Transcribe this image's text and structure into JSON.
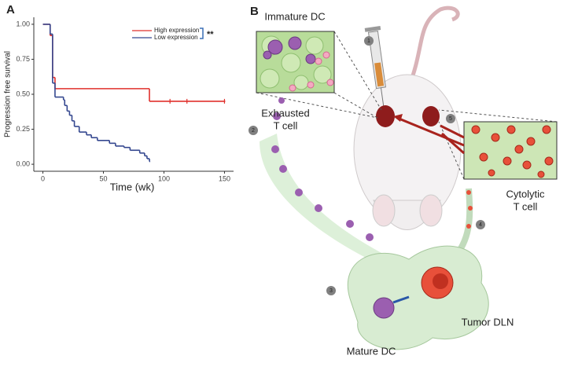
{
  "chart_data": {
    "type": "step",
    "panel_label": "A",
    "xlabel": "Time (wk)",
    "ylabel": "Progression free survival",
    "annotation": "**",
    "xlim": [
      -7.5,
      157.5
    ],
    "ylim": [
      -0.05,
      1.05
    ],
    "xticks": [
      0,
      50,
      100,
      150
    ],
    "yticks": [
      {
        "value": 0,
        "label": "0.00"
      },
      {
        "value": 0.25,
        "label": "0.25"
      },
      {
        "value": 0.5,
        "label": "0.50"
      },
      {
        "value": 0.75,
        "label": "0.75"
      },
      {
        "value": 1,
        "label": "1.00"
      }
    ],
    "legend": "upper right",
    "series": [
      {
        "name": "High expression",
        "color": "#e0302c",
        "x": [
          0,
          6,
          8,
          10,
          88,
          150
        ],
        "values": [
          1.0,
          0.92,
          0.62,
          0.54,
          0.45,
          0.45
        ],
        "censored": [
          105,
          119,
          150
        ]
      },
      {
        "name": "Low expression",
        "color": "#34478f",
        "x": [
          0,
          6,
          8,
          10,
          17,
          18,
          20,
          22,
          24,
          26,
          30,
          36,
          40,
          45,
          55,
          60,
          67,
          72,
          80,
          84,
          86,
          88
        ],
        "values": [
          1.0,
          0.93,
          0.58,
          0.48,
          0.46,
          0.42,
          0.38,
          0.35,
          0.31,
          0.27,
          0.23,
          0.21,
          0.19,
          0.17,
          0.15,
          0.13,
          0.12,
          0.1,
          0.08,
          0.06,
          0.04,
          0.02
        ],
        "censored": []
      }
    ]
  },
  "diagram": {
    "panel_label": "B",
    "immature_dc": "Immature DC",
    "exhausted": [
      "Exhausted",
      "T cell"
    ],
    "cytolytic": [
      "Cytolytic",
      "T cell"
    ],
    "tumor_dln": "Tumor DLN",
    "mature_dc": "Mature DC",
    "steps": [
      "1",
      "2",
      "3",
      "4",
      "5"
    ]
  }
}
